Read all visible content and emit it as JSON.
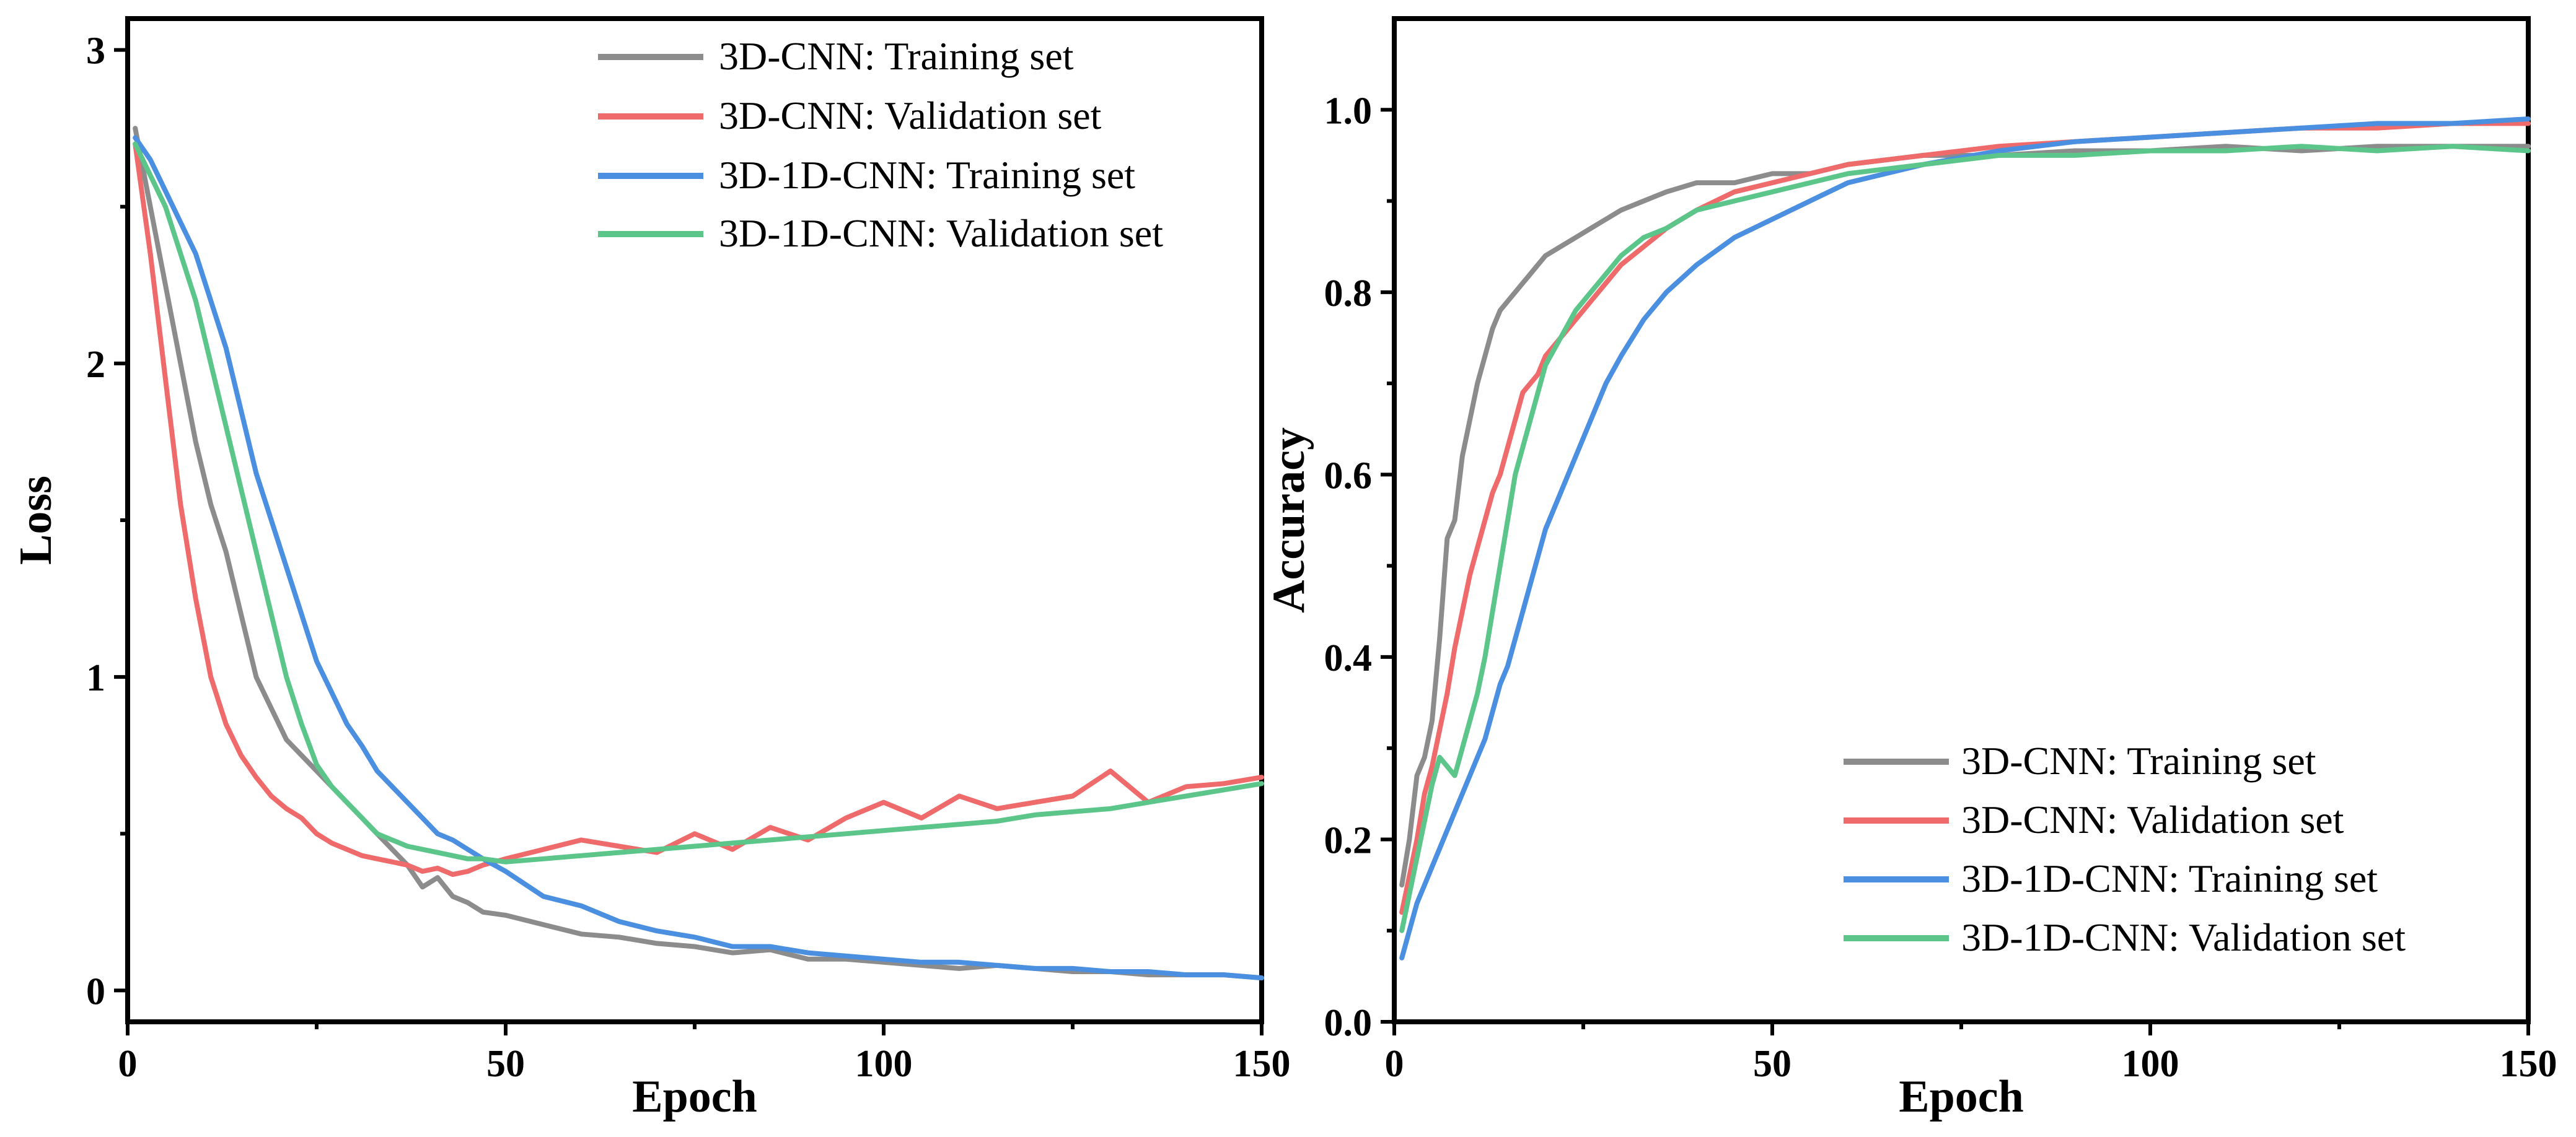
{
  "chart_data": [
    {
      "type": "line",
      "xlabel": "Epoch",
      "ylabel": "Loss",
      "xlim": [
        0,
        150
      ],
      "ylim": [
        -0.1,
        3.1
      ],
      "xticks": [
        0,
        50,
        100,
        150
      ],
      "yticks": [
        0,
        1,
        2,
        3
      ],
      "xtick_labels": [
        "0",
        "50",
        "100",
        "150"
      ],
      "ytick_labels": [
        "0",
        "1",
        "2",
        "3"
      ],
      "legend_position": "top-right",
      "series": [
        {
          "name": "3D-CNN: Training set",
          "color": "#8c8c8c",
          "x": [
            1,
            3,
            5,
            7,
            9,
            11,
            13,
            15,
            17,
            19,
            21,
            23,
            25,
            27,
            29,
            31,
            33,
            35,
            37,
            39,
            41,
            43,
            45,
            47,
            50,
            55,
            60,
            65,
            70,
            75,
            80,
            85,
            90,
            95,
            100,
            105,
            110,
            115,
            120,
            125,
            130,
            135,
            140,
            145,
            150
          ],
          "y": [
            2.75,
            2.5,
            2.25,
            2.0,
            1.75,
            1.55,
            1.4,
            1.2,
            1.0,
            0.9,
            0.8,
            0.75,
            0.7,
            0.65,
            0.6,
            0.55,
            0.5,
            0.45,
            0.4,
            0.33,
            0.36,
            0.3,
            0.28,
            0.25,
            0.24,
            0.21,
            0.18,
            0.17,
            0.15,
            0.14,
            0.12,
            0.13,
            0.1,
            0.1,
            0.09,
            0.08,
            0.07,
            0.08,
            0.07,
            0.06,
            0.06,
            0.05,
            0.05,
            0.05,
            0.04
          ]
        },
        {
          "name": "3D-CNN: Validation set",
          "color": "#ef6b6b",
          "x": [
            1,
            3,
            5,
            7,
            9,
            11,
            13,
            15,
            17,
            19,
            21,
            23,
            25,
            27,
            29,
            31,
            33,
            35,
            37,
            39,
            41,
            43,
            45,
            47,
            50,
            55,
            60,
            65,
            70,
            75,
            80,
            85,
            90,
            95,
            100,
            105,
            110,
            115,
            120,
            125,
            130,
            135,
            140,
            145,
            150
          ],
          "y": [
            2.7,
            2.35,
            1.95,
            1.55,
            1.25,
            1.0,
            0.85,
            0.75,
            0.68,
            0.62,
            0.58,
            0.55,
            0.5,
            0.47,
            0.45,
            0.43,
            0.42,
            0.41,
            0.4,
            0.38,
            0.39,
            0.37,
            0.38,
            0.4,
            0.42,
            0.45,
            0.48,
            0.46,
            0.44,
            0.5,
            0.45,
            0.52,
            0.48,
            0.55,
            0.6,
            0.55,
            0.62,
            0.58,
            0.6,
            0.62,
            0.7,
            0.6,
            0.65,
            0.66,
            0.68
          ]
        },
        {
          "name": "3D-1D-CNN: Training set",
          "color": "#4a8fe0",
          "x": [
            1,
            3,
            5,
            7,
            9,
            11,
            13,
            15,
            17,
            19,
            21,
            23,
            25,
            27,
            29,
            31,
            33,
            35,
            37,
            39,
            41,
            43,
            45,
            47,
            50,
            55,
            60,
            65,
            70,
            75,
            80,
            85,
            90,
            95,
            100,
            105,
            110,
            115,
            120,
            125,
            130,
            135,
            140,
            145,
            150
          ],
          "y": [
            2.72,
            2.65,
            2.55,
            2.45,
            2.35,
            2.2,
            2.05,
            1.85,
            1.65,
            1.5,
            1.35,
            1.2,
            1.05,
            0.95,
            0.85,
            0.78,
            0.7,
            0.65,
            0.6,
            0.55,
            0.5,
            0.48,
            0.45,
            0.42,
            0.38,
            0.3,
            0.27,
            0.22,
            0.19,
            0.17,
            0.14,
            0.14,
            0.12,
            0.11,
            0.1,
            0.09,
            0.09,
            0.08,
            0.07,
            0.07,
            0.06,
            0.06,
            0.05,
            0.05,
            0.04
          ]
        },
        {
          "name": "3D-1D-CNN: Validation set",
          "color": "#5cc68a",
          "x": [
            1,
            3,
            5,
            7,
            9,
            11,
            13,
            15,
            17,
            19,
            21,
            23,
            25,
            27,
            29,
            31,
            33,
            35,
            37,
            39,
            41,
            43,
            45,
            47,
            50,
            55,
            60,
            65,
            70,
            75,
            80,
            85,
            90,
            95,
            100,
            105,
            110,
            115,
            120,
            125,
            130,
            135,
            140,
            145,
            150
          ],
          "y": [
            2.7,
            2.6,
            2.5,
            2.35,
            2.2,
            2.0,
            1.8,
            1.6,
            1.4,
            1.2,
            1.0,
            0.85,
            0.72,
            0.65,
            0.6,
            0.55,
            0.5,
            0.48,
            0.46,
            0.45,
            0.44,
            0.43,
            0.42,
            0.42,
            0.41,
            0.42,
            0.43,
            0.44,
            0.45,
            0.46,
            0.47,
            0.48,
            0.49,
            0.5,
            0.51,
            0.52,
            0.53,
            0.54,
            0.56,
            0.57,
            0.58,
            0.6,
            0.62,
            0.64,
            0.66
          ]
        }
      ]
    },
    {
      "type": "line",
      "xlabel": "Epoch",
      "ylabel": "Accuracy",
      "xlim": [
        0,
        150
      ],
      "ylim": [
        0.0,
        1.1
      ],
      "xticks": [
        0,
        50,
        100,
        150
      ],
      "yticks": [
        0.0,
        0.2,
        0.4,
        0.6,
        0.8,
        1.0
      ],
      "xtick_labels": [
        "0",
        "50",
        "100",
        "150"
      ],
      "ytick_labels": [
        "0.0",
        "0.2",
        "0.4",
        "0.6",
        "0.8",
        "1.0"
      ],
      "legend_position": "bottom-right",
      "series": [
        {
          "name": "3D-CNN: Training set",
          "color": "#8c8c8c",
          "x": [
            1,
            2,
            3,
            4,
            5,
            6,
            7,
            8,
            9,
            10,
            11,
            12,
            13,
            14,
            15,
            16,
            17,
            18,
            19,
            20,
            22,
            24,
            26,
            28,
            30,
            33,
            36,
            40,
            45,
            50,
            55,
            60,
            70,
            80,
            90,
            100,
            110,
            120,
            130,
            140,
            150
          ],
          "y": [
            0.15,
            0.2,
            0.27,
            0.29,
            0.33,
            0.42,
            0.53,
            0.55,
            0.62,
            0.66,
            0.7,
            0.73,
            0.76,
            0.78,
            0.79,
            0.8,
            0.81,
            0.82,
            0.83,
            0.84,
            0.85,
            0.86,
            0.87,
            0.88,
            0.89,
            0.9,
            0.91,
            0.92,
            0.92,
            0.93,
            0.93,
            0.94,
            0.95,
            0.95,
            0.955,
            0.955,
            0.96,
            0.955,
            0.96,
            0.96,
            0.96
          ]
        },
        {
          "name": "3D-CNN: Validation set",
          "color": "#ef6b6b",
          "x": [
            1,
            2,
            3,
            4,
            5,
            6,
            7,
            8,
            9,
            10,
            11,
            12,
            13,
            14,
            15,
            16,
            17,
            18,
            19,
            20,
            22,
            24,
            26,
            28,
            30,
            33,
            36,
            40,
            45,
            50,
            55,
            60,
            70,
            80,
            90,
            100,
            110,
            120,
            130,
            140,
            150
          ],
          "y": [
            0.12,
            0.16,
            0.2,
            0.25,
            0.28,
            0.32,
            0.36,
            0.41,
            0.45,
            0.49,
            0.52,
            0.55,
            0.58,
            0.6,
            0.63,
            0.66,
            0.69,
            0.7,
            0.71,
            0.73,
            0.75,
            0.77,
            0.79,
            0.81,
            0.83,
            0.85,
            0.87,
            0.89,
            0.91,
            0.92,
            0.93,
            0.94,
            0.95,
            0.96,
            0.965,
            0.97,
            0.975,
            0.98,
            0.98,
            0.985,
            0.985
          ]
        },
        {
          "name": "3D-1D-CNN: Training set",
          "color": "#4a8fe0",
          "x": [
            1,
            2,
            3,
            4,
            5,
            6,
            7,
            8,
            9,
            10,
            11,
            12,
            13,
            14,
            15,
            16,
            17,
            18,
            19,
            20,
            22,
            24,
            26,
            28,
            30,
            33,
            36,
            40,
            45,
            50,
            55,
            60,
            70,
            80,
            90,
            100,
            110,
            120,
            130,
            140,
            150
          ],
          "y": [
            0.07,
            0.1,
            0.13,
            0.15,
            0.17,
            0.19,
            0.21,
            0.23,
            0.25,
            0.27,
            0.29,
            0.31,
            0.34,
            0.37,
            0.39,
            0.42,
            0.45,
            0.48,
            0.51,
            0.54,
            0.58,
            0.62,
            0.66,
            0.7,
            0.73,
            0.77,
            0.8,
            0.83,
            0.86,
            0.88,
            0.9,
            0.92,
            0.94,
            0.955,
            0.965,
            0.97,
            0.975,
            0.98,
            0.985,
            0.985,
            0.99
          ]
        },
        {
          "name": "3D-1D-CNN: Validation set",
          "color": "#5cc68a",
          "x": [
            1,
            2,
            3,
            4,
            5,
            6,
            7,
            8,
            9,
            10,
            11,
            12,
            13,
            14,
            15,
            16,
            17,
            18,
            19,
            20,
            22,
            24,
            26,
            28,
            30,
            33,
            36,
            40,
            45,
            50,
            55,
            60,
            70,
            80,
            90,
            100,
            110,
            120,
            130,
            140,
            150
          ],
          "y": [
            0.1,
            0.14,
            0.18,
            0.22,
            0.26,
            0.29,
            0.28,
            0.27,
            0.3,
            0.33,
            0.36,
            0.4,
            0.45,
            0.5,
            0.55,
            0.6,
            0.63,
            0.66,
            0.69,
            0.72,
            0.75,
            0.78,
            0.8,
            0.82,
            0.84,
            0.86,
            0.87,
            0.89,
            0.9,
            0.91,
            0.92,
            0.93,
            0.94,
            0.95,
            0.95,
            0.955,
            0.955,
            0.96,
            0.955,
            0.96,
            0.955
          ]
        }
      ]
    }
  ]
}
